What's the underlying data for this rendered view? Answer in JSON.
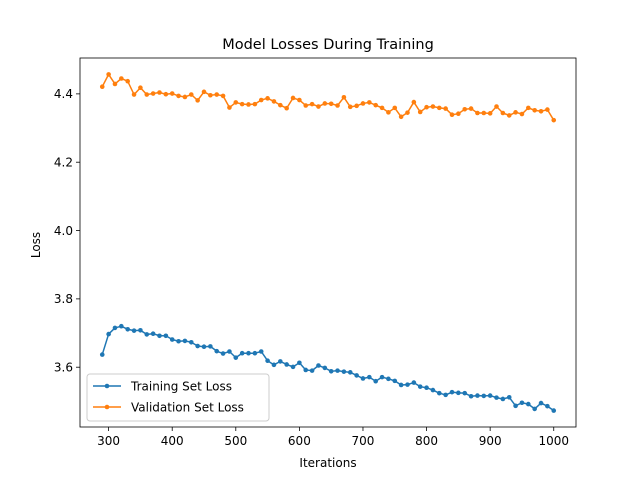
{
  "chart_data": {
    "type": "line",
    "title": "Model Losses During Training",
    "xlabel": "Iterations",
    "ylabel": "Loss",
    "xlim": [
      255,
      1035
    ],
    "ylim": [
      3.425,
      4.505
    ],
    "xticks": [
      300,
      400,
      500,
      600,
      700,
      800,
      900,
      1000
    ],
    "yticks": [
      3.6,
      3.8,
      4.0,
      4.2,
      4.4
    ],
    "xtick_labels": [
      "300",
      "400",
      "500",
      "600",
      "700",
      "800",
      "900",
      "1000"
    ],
    "ytick_labels": [
      "3.6",
      "3.8",
      "4.0",
      "4.2",
      "4.4"
    ],
    "grid": false,
    "legend_position": "lower-left",
    "x": [
      290,
      300,
      310,
      320,
      330,
      340,
      350,
      360,
      370,
      380,
      390,
      400,
      410,
      420,
      430,
      440,
      450,
      460,
      470,
      480,
      490,
      500,
      510,
      520,
      530,
      540,
      550,
      560,
      570,
      580,
      590,
      600,
      610,
      620,
      630,
      640,
      650,
      660,
      670,
      680,
      690,
      700,
      710,
      720,
      730,
      740,
      750,
      760,
      770,
      780,
      790,
      800,
      810,
      820,
      830,
      840,
      850,
      860,
      870,
      880,
      890,
      900,
      910,
      920,
      930,
      940,
      950,
      960,
      970,
      980,
      990,
      1000
    ],
    "series": [
      {
        "name": "Training Set Loss",
        "color": "#1f77b4",
        "values": [
          3.637,
          3.697,
          3.715,
          3.72,
          3.711,
          3.707,
          3.708,
          3.696,
          3.698,
          3.692,
          3.692,
          3.681,
          3.676,
          3.677,
          3.673,
          3.662,
          3.66,
          3.661,
          3.647,
          3.64,
          3.646,
          3.628,
          3.641,
          3.641,
          3.641,
          3.646,
          3.619,
          3.607,
          3.617,
          3.608,
          3.601,
          3.613,
          3.592,
          3.59,
          3.605,
          3.598,
          3.588,
          3.59,
          3.587,
          3.585,
          3.576,
          3.567,
          3.571,
          3.559,
          3.571,
          3.566,
          3.56,
          3.548,
          3.549,
          3.555,
          3.543,
          3.54,
          3.533,
          3.524,
          3.519,
          3.527,
          3.525,
          3.524,
          3.515,
          3.517,
          3.516,
          3.517,
          3.511,
          3.507,
          3.512,
          3.487,
          3.496,
          3.492,
          3.478,
          3.495,
          3.486,
          3.473
        ]
      },
      {
        "name": "Validation Set Loss",
        "color": "#ff7f0e",
        "values": [
          4.421,
          4.457,
          4.429,
          4.445,
          4.437,
          4.398,
          4.418,
          4.398,
          4.401,
          4.404,
          4.399,
          4.401,
          4.394,
          4.391,
          4.398,
          4.381,
          4.406,
          4.396,
          4.398,
          4.394,
          4.36,
          4.375,
          4.37,
          4.369,
          4.37,
          4.382,
          4.387,
          4.378,
          4.367,
          4.358,
          4.388,
          4.382,
          4.366,
          4.37,
          4.363,
          4.372,
          4.371,
          4.366,
          4.39,
          4.362,
          4.365,
          4.372,
          4.375,
          4.367,
          4.359,
          4.346,
          4.359,
          4.333,
          4.345,
          4.376,
          4.347,
          4.361,
          4.363,
          4.359,
          4.357,
          4.339,
          4.342,
          4.355,
          4.357,
          4.344,
          4.344,
          4.343,
          4.363,
          4.344,
          4.337,
          4.346,
          4.341,
          4.359,
          4.352,
          4.349,
          4.354,
          4.323
        ]
      }
    ]
  }
}
